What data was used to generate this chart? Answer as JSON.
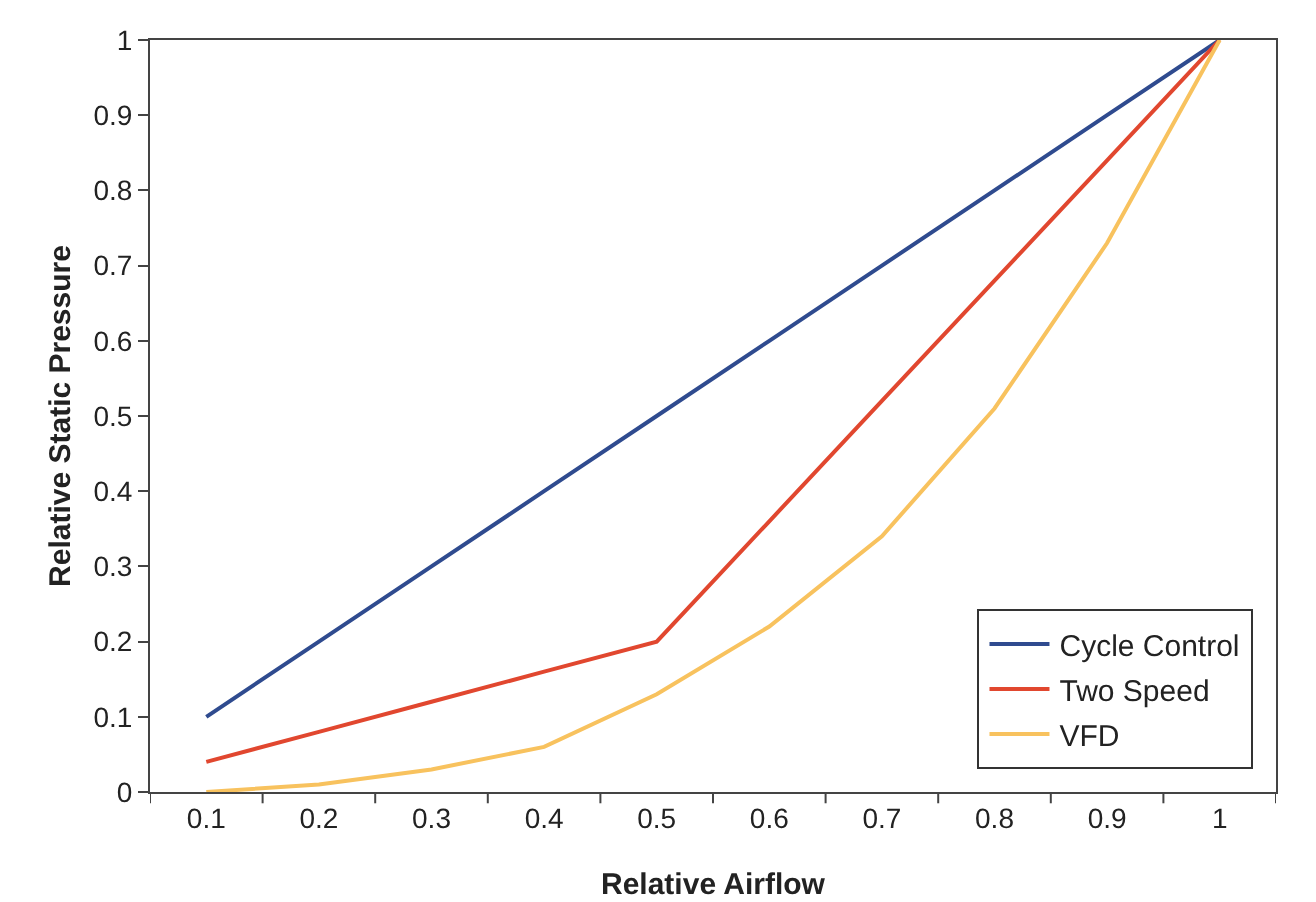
{
  "chart_data": {
    "type": "line",
    "xlabel": "Relative Airflow",
    "ylabel": "Relative Static Pressure",
    "categories": [
      "0.1",
      "0.2",
      "0.3",
      "0.4",
      "0.5",
      "0.6",
      "0.7",
      "0.8",
      "0.9",
      "1"
    ],
    "series": [
      {
        "name": "Cycle Control",
        "color": "#2f4b8f",
        "values": [
          0.1,
          0.2,
          0.3,
          0.4,
          0.5,
          0.6,
          0.7,
          0.8,
          0.9,
          1
        ]
      },
      {
        "name": "Two Speed",
        "color": "#e1472f",
        "values": [
          0.04,
          0.08,
          0.12,
          0.16,
          0.2,
          0.36,
          0.52,
          0.68,
          0.84,
          1
        ]
      },
      {
        "name": "VFD",
        "color": "#f8c25e",
        "values": [
          0,
          0.01,
          0.03,
          0.06,
          0.13,
          0.22,
          0.34,
          0.51,
          0.73,
          1
        ]
      }
    ],
    "ylim": [
      0,
      1
    ],
    "yticks": [
      0,
      0.1,
      0.2,
      0.3,
      0.4,
      0.5,
      0.6,
      0.7,
      0.8,
      0.9,
      1
    ],
    "grid": false,
    "legend": "bottom right",
    "marker": "none",
    "line_style": "solid"
  }
}
